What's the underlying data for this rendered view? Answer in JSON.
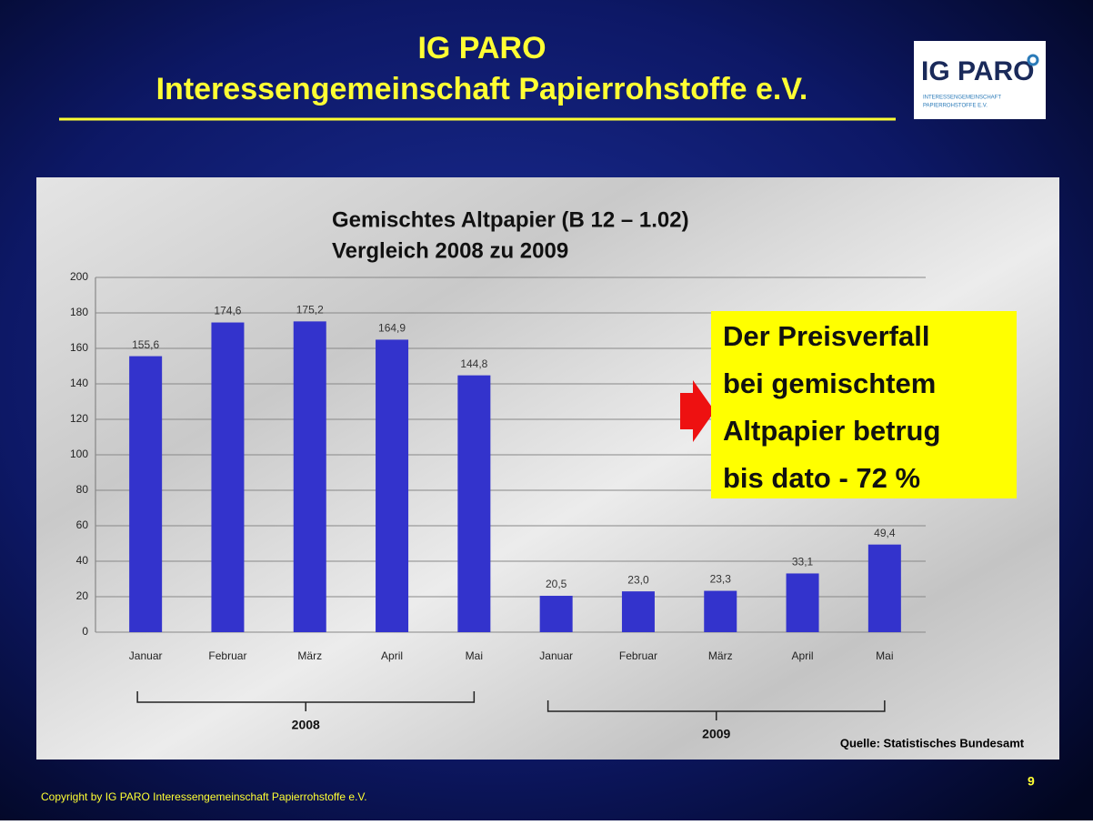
{
  "header": {
    "title": "IG PARO",
    "subtitle": "Interessengemeinschaft Papierrohstoffe e.V.",
    "logo": {
      "name": "IG PARO",
      "tagline": [
        "INTERESSENGEMEINSCHAFT",
        "PAPIERROHSTOFFE E.V."
      ]
    }
  },
  "chart_data": {
    "type": "bar",
    "title": [
      "Gemischtes Altpapier (B 12 – 1.02)",
      "Vergleich 2008 zu 2009"
    ],
    "categories": [
      "Januar",
      "Februar",
      "März",
      "April",
      "Mai",
      "Januar",
      "Februar",
      "März",
      "April",
      "Mai"
    ],
    "groups": [
      "2008",
      "2009"
    ],
    "values": [
      155.6,
      174.6,
      175.2,
      164.9,
      144.8,
      20.5,
      23.0,
      23.3,
      33.1,
      49.4
    ],
    "value_labels": [
      "155,6",
      "174,6",
      "175,2",
      "164,9",
      "144,8",
      "20,5",
      "23,0",
      "23,3",
      "33,1",
      "49,4"
    ],
    "color": "#3333cc",
    "ylim": [
      0,
      200
    ],
    "yticks": [
      0,
      20,
      40,
      60,
      80,
      100,
      120,
      140,
      160,
      180,
      200
    ],
    "grid": true,
    "annotation": [
      "Der Preisverfall",
      "bei gemischtem",
      "Altpapier betrug",
      "bis dato - 72 %"
    ],
    "source": "Quelle: Statistisches Bundesamt"
  },
  "footer": {
    "copyright": "Copyright by IG PARO Interessengemeinschaft Papierrohstoffe e.V.",
    "page": "9"
  }
}
